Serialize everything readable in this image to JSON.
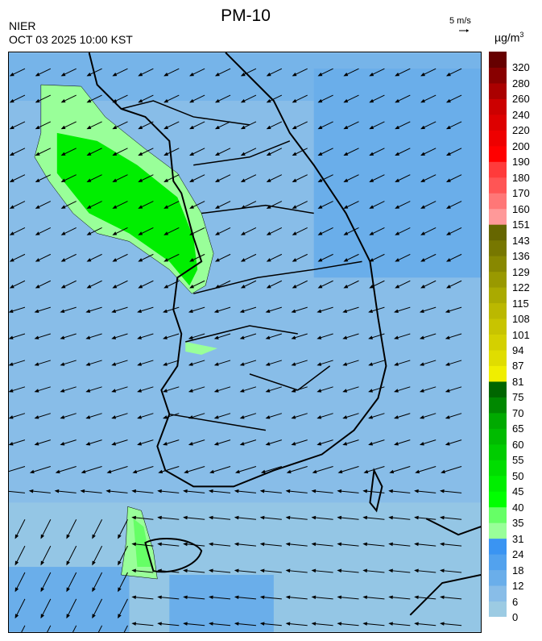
{
  "header": {
    "title": "PM-10",
    "organization": "NIER",
    "timestamp": "OCT 03 2025 10:00 KST",
    "wind_reference": "5 m/s",
    "unit_base": "µg/m",
    "unit_exp": "3"
  },
  "colorbar": {
    "labels": [
      "0",
      "6",
      "12",
      "18",
      "24",
      "31",
      "35",
      "40",
      "45",
      "50",
      "55",
      "60",
      "65",
      "70",
      "75",
      "81",
      "87",
      "94",
      "101",
      "108",
      "115",
      "122",
      "129",
      "136",
      "143",
      "151",
      "160",
      "170",
      "180",
      "190",
      "200",
      "220",
      "240",
      "260",
      "280",
      "320"
    ],
    "colors": [
      "#9ccbe3",
      "#88bde8",
      "#6aaeea",
      "#52a2ee",
      "#3a94f2",
      "#99ff99",
      "#66ff66",
      "#00ff00",
      "#00ee00",
      "#00dd00",
      "#00cc00",
      "#00bb00",
      "#00aa00",
      "#008800",
      "#006600",
      "#f0ee00",
      "#e0dd00",
      "#d4d000",
      "#c8c400",
      "#bbb800",
      "#aaaa00",
      "#999900",
      "#888800",
      "#777700",
      "#666600",
      "#ff9999",
      "#ff7777",
      "#ff5555",
      "#ff3b3b",
      "#ff0000",
      "#ee0000",
      "#dd0000",
      "#cc0000",
      "#aa0000",
      "#880000",
      "#660000"
    ]
  },
  "map": {
    "background": "#88bde8",
    "coastline": "#000000",
    "wind_arrow_color": "#000000"
  }
}
